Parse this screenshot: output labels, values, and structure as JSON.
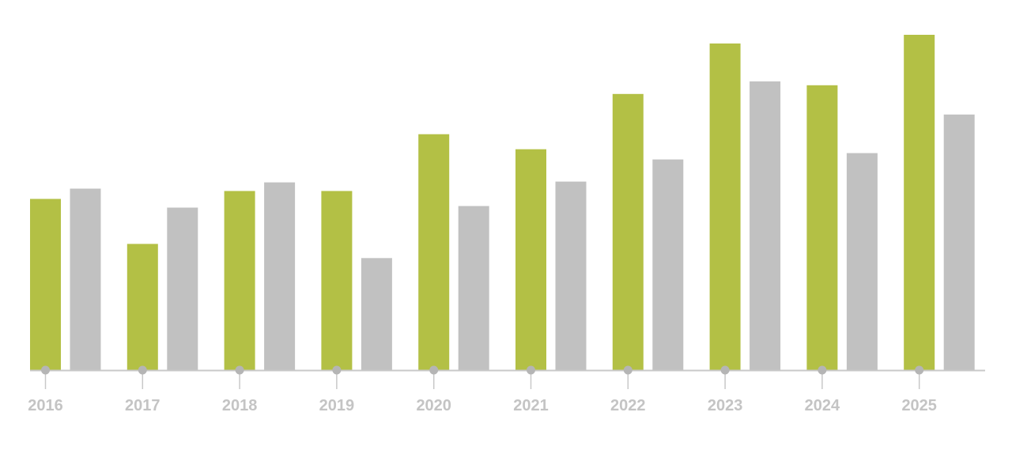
{
  "chart_data": {
    "type": "bar",
    "categories": [
      "2016",
      "2017",
      "2018",
      "2019",
      "2020",
      "2021",
      "2022",
      "2023",
      "2024",
      "2025"
    ],
    "series": [
      {
        "values": [
          217,
          160,
          227,
          227,
          299,
          280,
          350,
          414,
          361,
          425
        ]
      },
      {
        "values": [
          230,
          206,
          238,
          142,
          208,
          239,
          267,
          366,
          275,
          324
        ]
      }
    ],
    "ylim": [
      0,
      430
    ],
    "xlabel": "",
    "ylabel": "",
    "grid": false,
    "legend": "none"
  },
  "colors": {
    "series": [
      "#b3c045",
      "#c1c1c1"
    ],
    "axis": "#c8c8c8",
    "tick_marker": "#b5b5b5",
    "tick_label": "#c4c4c4"
  }
}
